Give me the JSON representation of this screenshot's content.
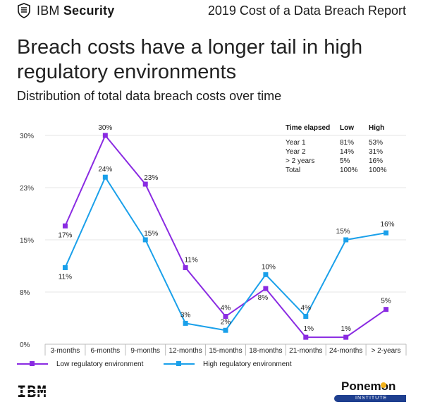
{
  "header": {
    "brand_bold": "Security",
    "brand_prefix": "IBM ",
    "report_title": "2019 Cost of a Data Breach Report"
  },
  "title": "Breach costs have a longer tail in high regulatory environments",
  "subtitle": "Distribution of total data breach costs over time",
  "colors": {
    "low": "#8a2be2",
    "high": "#1aa0ea",
    "grid": "#e6e6e6",
    "axis": "#bdbdbd"
  },
  "chart_data": {
    "type": "line",
    "categories": [
      "3-months",
      "6-months",
      "9-months",
      "12-months",
      "15-months",
      "18-months",
      "21-months",
      "24-months",
      "> 2-years"
    ],
    "ylim": [
      0,
      30
    ],
    "yticks": [
      0,
      7.5,
      15,
      22.5,
      30
    ],
    "ytick_labels": [
      "0%",
      "8%",
      "15%",
      "23%",
      "30%"
    ],
    "grid": true,
    "legend_position": "bottom",
    "series": [
      {
        "name": "Low regulatory environment",
        "color": "#8a2be2",
        "values": [
          17,
          30,
          23,
          11,
          4,
          8,
          1,
          1,
          5
        ],
        "labels": [
          "17%",
          "30%",
          "23%",
          "11%",
          "4%",
          "8%",
          "1%",
          "1%",
          "5%"
        ]
      },
      {
        "name": "High regulatory environment",
        "color": "#1aa0ea",
        "values": [
          11,
          24,
          15,
          3,
          2,
          10,
          4,
          15,
          16
        ],
        "labels": [
          "11%",
          "24%",
          "15%",
          "3%",
          "2%",
          "10%",
          "4%",
          "15%",
          "16%"
        ]
      }
    ],
    "table": {
      "headers": [
        "Time elapsed",
        "Low",
        "High"
      ],
      "rows": [
        [
          "Year 1",
          "81%",
          "53%"
        ],
        [
          "Year 2",
          "14%",
          "31%"
        ],
        [
          "> 2 years",
          "5%",
          "16%"
        ],
        [
          "Total",
          "100%",
          "100%"
        ]
      ]
    }
  },
  "legend": {
    "low_label": "Low regulatory environment",
    "high_label": "High regulatory environment"
  },
  "footer": {
    "ibm_logo": "IBM",
    "ponemon_name": "Ponemon",
    "ponemon_sub": "INSTITUTE"
  }
}
